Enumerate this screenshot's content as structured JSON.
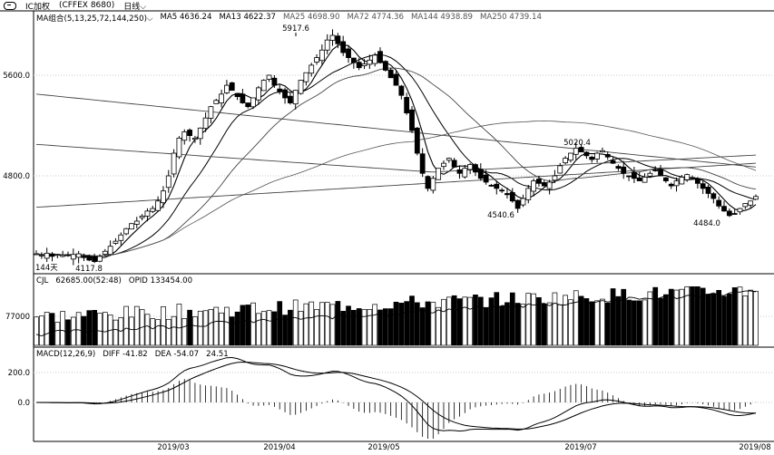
{
  "header": {
    "link_icon": "link-icon",
    "symbol": "IC加权",
    "code": "(CFFEX 8680)",
    "period": "日线",
    "period_dropdown_icon": "chevron-down-icon"
  },
  "main_panel": {
    "ma_group_label": "MA组合(5,13,25,72,144,250)",
    "ma_values": [
      {
        "label": "MA5 4636.24",
        "color": "#000000"
      },
      {
        "label": "MA13 4622.37",
        "color": "#000000"
      },
      {
        "label": "MA25 4698.90",
        "color": "#555555"
      },
      {
        "label": "MA72 4774.36",
        "color": "#555555"
      },
      {
        "label": "MA144 4938.89",
        "color": "#555555"
      },
      {
        "label": "MA250 4739.14",
        "color": "#555555"
      }
    ],
    "y_ticks": [
      "5600.0",
      "4800.0"
    ],
    "annotations": {
      "high": "5917.6",
      "low_start": "4117.8",
      "low_may": "4540.6",
      "high_jul": "5020.4",
      "low_aug": "4484.0",
      "days": "144天"
    }
  },
  "volume_panel": {
    "label": "CJL",
    "value": "62685.00(52:48)",
    "opid": "OPID 133454.00",
    "y_tick": "77000"
  },
  "macd_panel": {
    "label": "MACD(12,26,9)",
    "diff": "DIFF -41.82",
    "dea": "DEA -54.07",
    "macd": "24.51",
    "y_ticks": [
      "200.0",
      "0.0"
    ]
  },
  "x_axis": {
    "ticks": [
      "2019/03",
      "2019/04",
      "2019/05",
      "2019/07",
      "2019/08"
    ]
  },
  "colors": {
    "up": "#000000",
    "down": "#000000",
    "grid": "#d8d8d8",
    "axis": "#000000"
  },
  "chart_data": {
    "type": "candlestick",
    "title": "IC加权 (CFFEX 8680) 日线",
    "y_range": [
      4000,
      6100
    ],
    "closes": [
      4180,
      4170,
      4185,
      4160,
      4175,
      4170,
      4165,
      4175,
      4180,
      4150,
      4130,
      4118,
      4160,
      4200,
      4240,
      4280,
      4330,
      4380,
      4420,
      4440,
      4480,
      4520,
      4540,
      4600,
      4680,
      4800,
      4980,
      5100,
      5150,
      5120,
      5100,
      5180,
      5260,
      5350,
      5400,
      5450,
      5520,
      5480,
      5430,
      5380,
      5350,
      5420,
      5500,
      5560,
      5600,
      5520,
      5470,
      5420,
      5380,
      5480,
      5560,
      5620,
      5680,
      5740,
      5800,
      5880,
      5917,
      5850,
      5780,
      5740,
      5700,
      5660,
      5690,
      5720,
      5760,
      5700,
      5640,
      5580,
      5520,
      5440,
      5300,
      5160,
      4980,
      4820,
      4700,
      4780,
      4860,
      4900,
      4940,
      4870,
      4820,
      4860,
      4890,
      4830,
      4780,
      4750,
      4720,
      4700,
      4680,
      4650,
      4600,
      4541,
      4620,
      4700,
      4760,
      4740,
      4720,
      4750,
      4800,
      4880,
      4940,
      4980,
      5020,
      4990,
      4960,
      4930,
      4980,
      5000,
      4950,
      4900,
      4860,
      4820,
      4800,
      4780,
      4760,
      4790,
      4820,
      4840,
      4800,
      4760,
      4720,
      4760,
      4790,
      4810,
      4780,
      4740,
      4700,
      4660,
      4620,
      4560,
      4520,
      4484,
      4500,
      4540,
      4580,
      4600,
      4636
    ],
    "volume_oi": [],
    "macd": {
      "diff": -41.82,
      "dea": -54.07,
      "macd": 24.51
    }
  }
}
